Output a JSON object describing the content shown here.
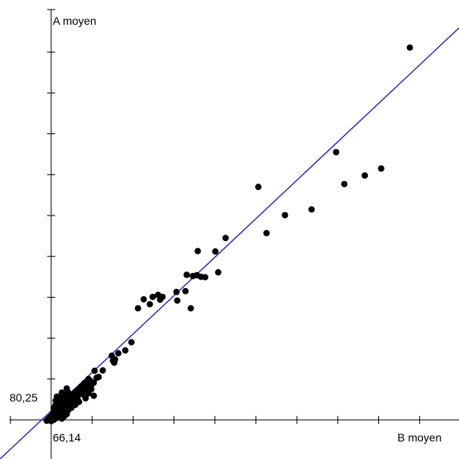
{
  "chart_data": {
    "type": "scatter",
    "xlabel": "B moyen",
    "ylabel": "A moyen",
    "origin_labels": {
      "x": "66,14",
      "y": "80,25"
    },
    "x_tick_step": 1,
    "y_tick_step": 1,
    "xlim": [
      65.9,
      75.25
    ],
    "ylim": [
      79.9,
      90.25
    ],
    "points": [
      [
        66.03,
        80.23
      ],
      [
        66.06,
        80.26
      ],
      [
        66.08,
        80.28
      ],
      [
        66.1,
        80.3
      ],
      [
        66.12,
        80.32
      ],
      [
        66.14,
        80.34
      ],
      [
        66.16,
        80.36
      ],
      [
        66.18,
        80.38
      ],
      [
        66.2,
        80.41
      ],
      [
        66.23,
        80.44
      ],
      [
        66.26,
        80.46
      ],
      [
        66.29,
        80.49
      ],
      [
        66.32,
        80.52
      ],
      [
        66.35,
        80.55
      ],
      [
        66.38,
        80.58
      ],
      [
        66.42,
        80.62
      ],
      [
        66.46,
        80.66
      ],
      [
        66.5,
        80.7
      ],
      [
        66.55,
        80.75
      ],
      [
        66.6,
        80.8
      ],
      [
        66.65,
        80.85
      ],
      [
        66.7,
        80.9
      ],
      [
        66.78,
        80.98
      ],
      [
        66.86,
        81.06
      ],
      [
        66.95,
        81.15
      ],
      [
        67.05,
        81.25
      ],
      [
        67.2,
        81.45
      ],
      [
        66.12,
        80.27
      ],
      [
        66.17,
        80.31
      ],
      [
        66.22,
        80.36
      ],
      [
        66.28,
        80.42
      ],
      [
        66.34,
        80.47
      ],
      [
        66.4,
        80.53
      ],
      [
        66.47,
        80.6
      ],
      [
        66.53,
        80.67
      ],
      [
        66.6,
        80.74
      ],
      [
        66.68,
        80.81
      ],
      [
        66.75,
        80.88
      ],
      [
        66.83,
        80.96
      ],
      [
        66.92,
        81.03
      ],
      [
        66.3,
        80.62
      ],
      [
        66.36,
        80.66
      ],
      [
        66.42,
        80.71
      ],
      [
        66.48,
        80.75
      ],
      [
        66.56,
        80.82
      ],
      [
        66.64,
        80.86
      ],
      [
        66.72,
        80.93
      ],
      [
        66.82,
        81.0
      ],
      [
        66.92,
        81.06
      ],
      [
        66.2,
        80.54
      ],
      [
        66.24,
        80.6
      ],
      [
        66.28,
        80.64
      ],
      [
        66.14,
        80.22
      ],
      [
        66.2,
        80.25
      ],
      [
        66.26,
        80.29
      ],
      [
        66.32,
        80.34
      ],
      [
        66.4,
        80.39
      ],
      [
        66.48,
        80.44
      ],
      [
        66.56,
        80.49
      ],
      [
        66.64,
        80.55
      ],
      [
        66.73,
        80.62
      ],
      [
        66.82,
        80.69
      ],
      [
        66.4,
        80.28
      ],
      [
        66.46,
        80.34
      ],
      [
        66.52,
        80.39
      ],
      [
        67.05,
        81.05
      ],
      [
        67.18,
        81.16
      ],
      [
        67.3,
        81.3
      ],
      [
        67.12,
        81.0
      ],
      [
        66.25,
        80.72
      ],
      [
        66.35,
        80.8
      ],
      [
        66.45,
        80.86
      ],
      [
        66.55,
        80.93
      ],
      [
        66.28,
        80.82
      ],
      [
        66.4,
        80.92
      ],
      [
        66.52,
        81.02
      ],
      [
        66.65,
        80.65
      ],
      [
        66.78,
        80.78
      ],
      [
        66.9,
        80.88
      ],
      [
        66.98,
        81.0
      ],
      [
        67.05,
        80.9
      ],
      [
        67.12,
        81.1
      ],
      [
        67.18,
        80.84
      ],
      [
        66.2,
        80.45
      ],
      [
        66.22,
        80.5
      ],
      [
        66.24,
        80.4
      ],
      [
        66.34,
        80.58
      ],
      [
        66.38,
        80.5
      ],
      [
        66.44,
        80.52
      ],
      [
        66.5,
        80.58
      ],
      [
        66.58,
        80.63
      ],
      [
        66.62,
        80.72
      ],
      [
        66.7,
        80.76
      ],
      [
        66.76,
        80.84
      ],
      [
        66.86,
        80.93
      ],
      [
        67.1,
        81.2
      ],
      [
        67.0,
        81.11
      ],
      [
        66.95,
        81.02
      ],
      [
        67.25,
        81.28
      ],
      [
        67.4,
        81.46
      ],
      [
        66.98,
        80.78
      ],
      [
        66.48,
        80.48
      ],
      [
        66.36,
        80.4
      ],
      [
        67.65,
        81.7
      ],
      [
        67.78,
        81.88
      ],
      [
        67.95,
        81.95
      ],
      [
        68.1,
        82.15
      ],
      [
        67.62,
        81.82
      ],
      [
        67.7,
        81.73
      ],
      [
        67.68,
        81.65
      ],
      [
        68.26,
        82.98
      ],
      [
        68.4,
        83.2
      ],
      [
        68.55,
        83.08
      ],
      [
        68.62,
        83.26
      ],
      [
        68.75,
        83.31
      ],
      [
        68.86,
        83.26
      ],
      [
        68.8,
        83.19
      ],
      [
        69.2,
        83.38
      ],
      [
        69.22,
        83.17
      ],
      [
        69.42,
        83.4
      ],
      [
        69.6,
        83.77
      ],
      [
        69.45,
        83.8
      ],
      [
        69.8,
        83.75
      ],
      [
        69.7,
        83.79
      ],
      [
        69.55,
        82.98
      ],
      [
        70.15,
        84.37
      ],
      [
        70.22,
        83.86
      ],
      [
        69.9,
        83.74
      ],
      [
        71.2,
        85.95
      ],
      [
        71.4,
        84.82
      ],
      [
        71.85,
        85.26
      ],
      [
        72.5,
        85.4
      ],
      [
        73.1,
        86.8
      ],
      [
        73.3,
        86.02
      ],
      [
        73.8,
        86.23
      ],
      [
        74.2,
        86.4
      ],
      [
        74.9,
        89.36
      ],
      [
        69.72,
        84.38
      ],
      [
        70.4,
        84.7
      ]
    ],
    "regression_line": {
      "from": [
        65.9,
        79.87
      ],
      "to": [
        75.25,
        89.86
      ]
    },
    "point_color": "#000000",
    "line_color": "#1515d8",
    "grid": false
  }
}
